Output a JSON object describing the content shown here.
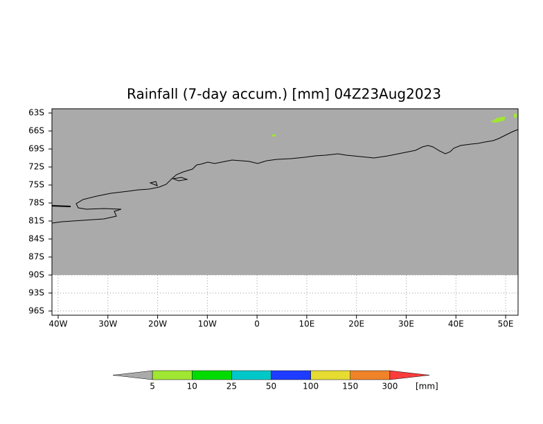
{
  "map": {
    "title": "Rainfall (7-day accum.) [mm] 04Z23Aug2023",
    "xlim": [
      -41.25,
      52.5
    ],
    "ylim": [
      -96.7,
      -62.3
    ],
    "xticks": [
      {
        "value": -40,
        "label": "40W"
      },
      {
        "value": -30,
        "label": "30W"
      },
      {
        "value": -20,
        "label": "20W"
      },
      {
        "value": -10,
        "label": "10W"
      },
      0,
      {
        "value": 10,
        "label": "10E"
      },
      {
        "value": 20,
        "label": "20E"
      },
      {
        "value": 30,
        "label": "30E"
      },
      {
        "value": 40,
        "label": "40E"
      },
      {
        "value": 50,
        "label": "50E"
      }
    ],
    "yticks": [
      {
        "value": -63,
        "label": "63S"
      },
      {
        "value": -66,
        "label": "66S"
      },
      {
        "value": -69,
        "label": "69S"
      },
      {
        "value": -72,
        "label": "72S"
      },
      {
        "value": -75,
        "label": "75S"
      },
      {
        "value": -78,
        "label": "78S"
      },
      {
        "value": -81,
        "label": "81S"
      },
      {
        "value": -84,
        "label": "84S"
      },
      {
        "value": -87,
        "label": "87S"
      },
      {
        "value": -90,
        "label": "90S"
      },
      {
        "value": -93,
        "label": "93S"
      },
      {
        "value": -96,
        "label": "96S"
      }
    ],
    "grid": true,
    "shaded_south_limit": -90,
    "shade_color": "#aaaaaa",
    "colorbar": {
      "levels": [
        5,
        10,
        25,
        50,
        100,
        150,
        300
      ],
      "colors": [
        "#aaaaaa",
        "#a0e632",
        "#00dc00",
        "#00c8c8",
        "#1e3cff",
        "#e6dc32",
        "#f08228",
        "#fa3c3c"
      ],
      "unit": "[mm]"
    }
  }
}
